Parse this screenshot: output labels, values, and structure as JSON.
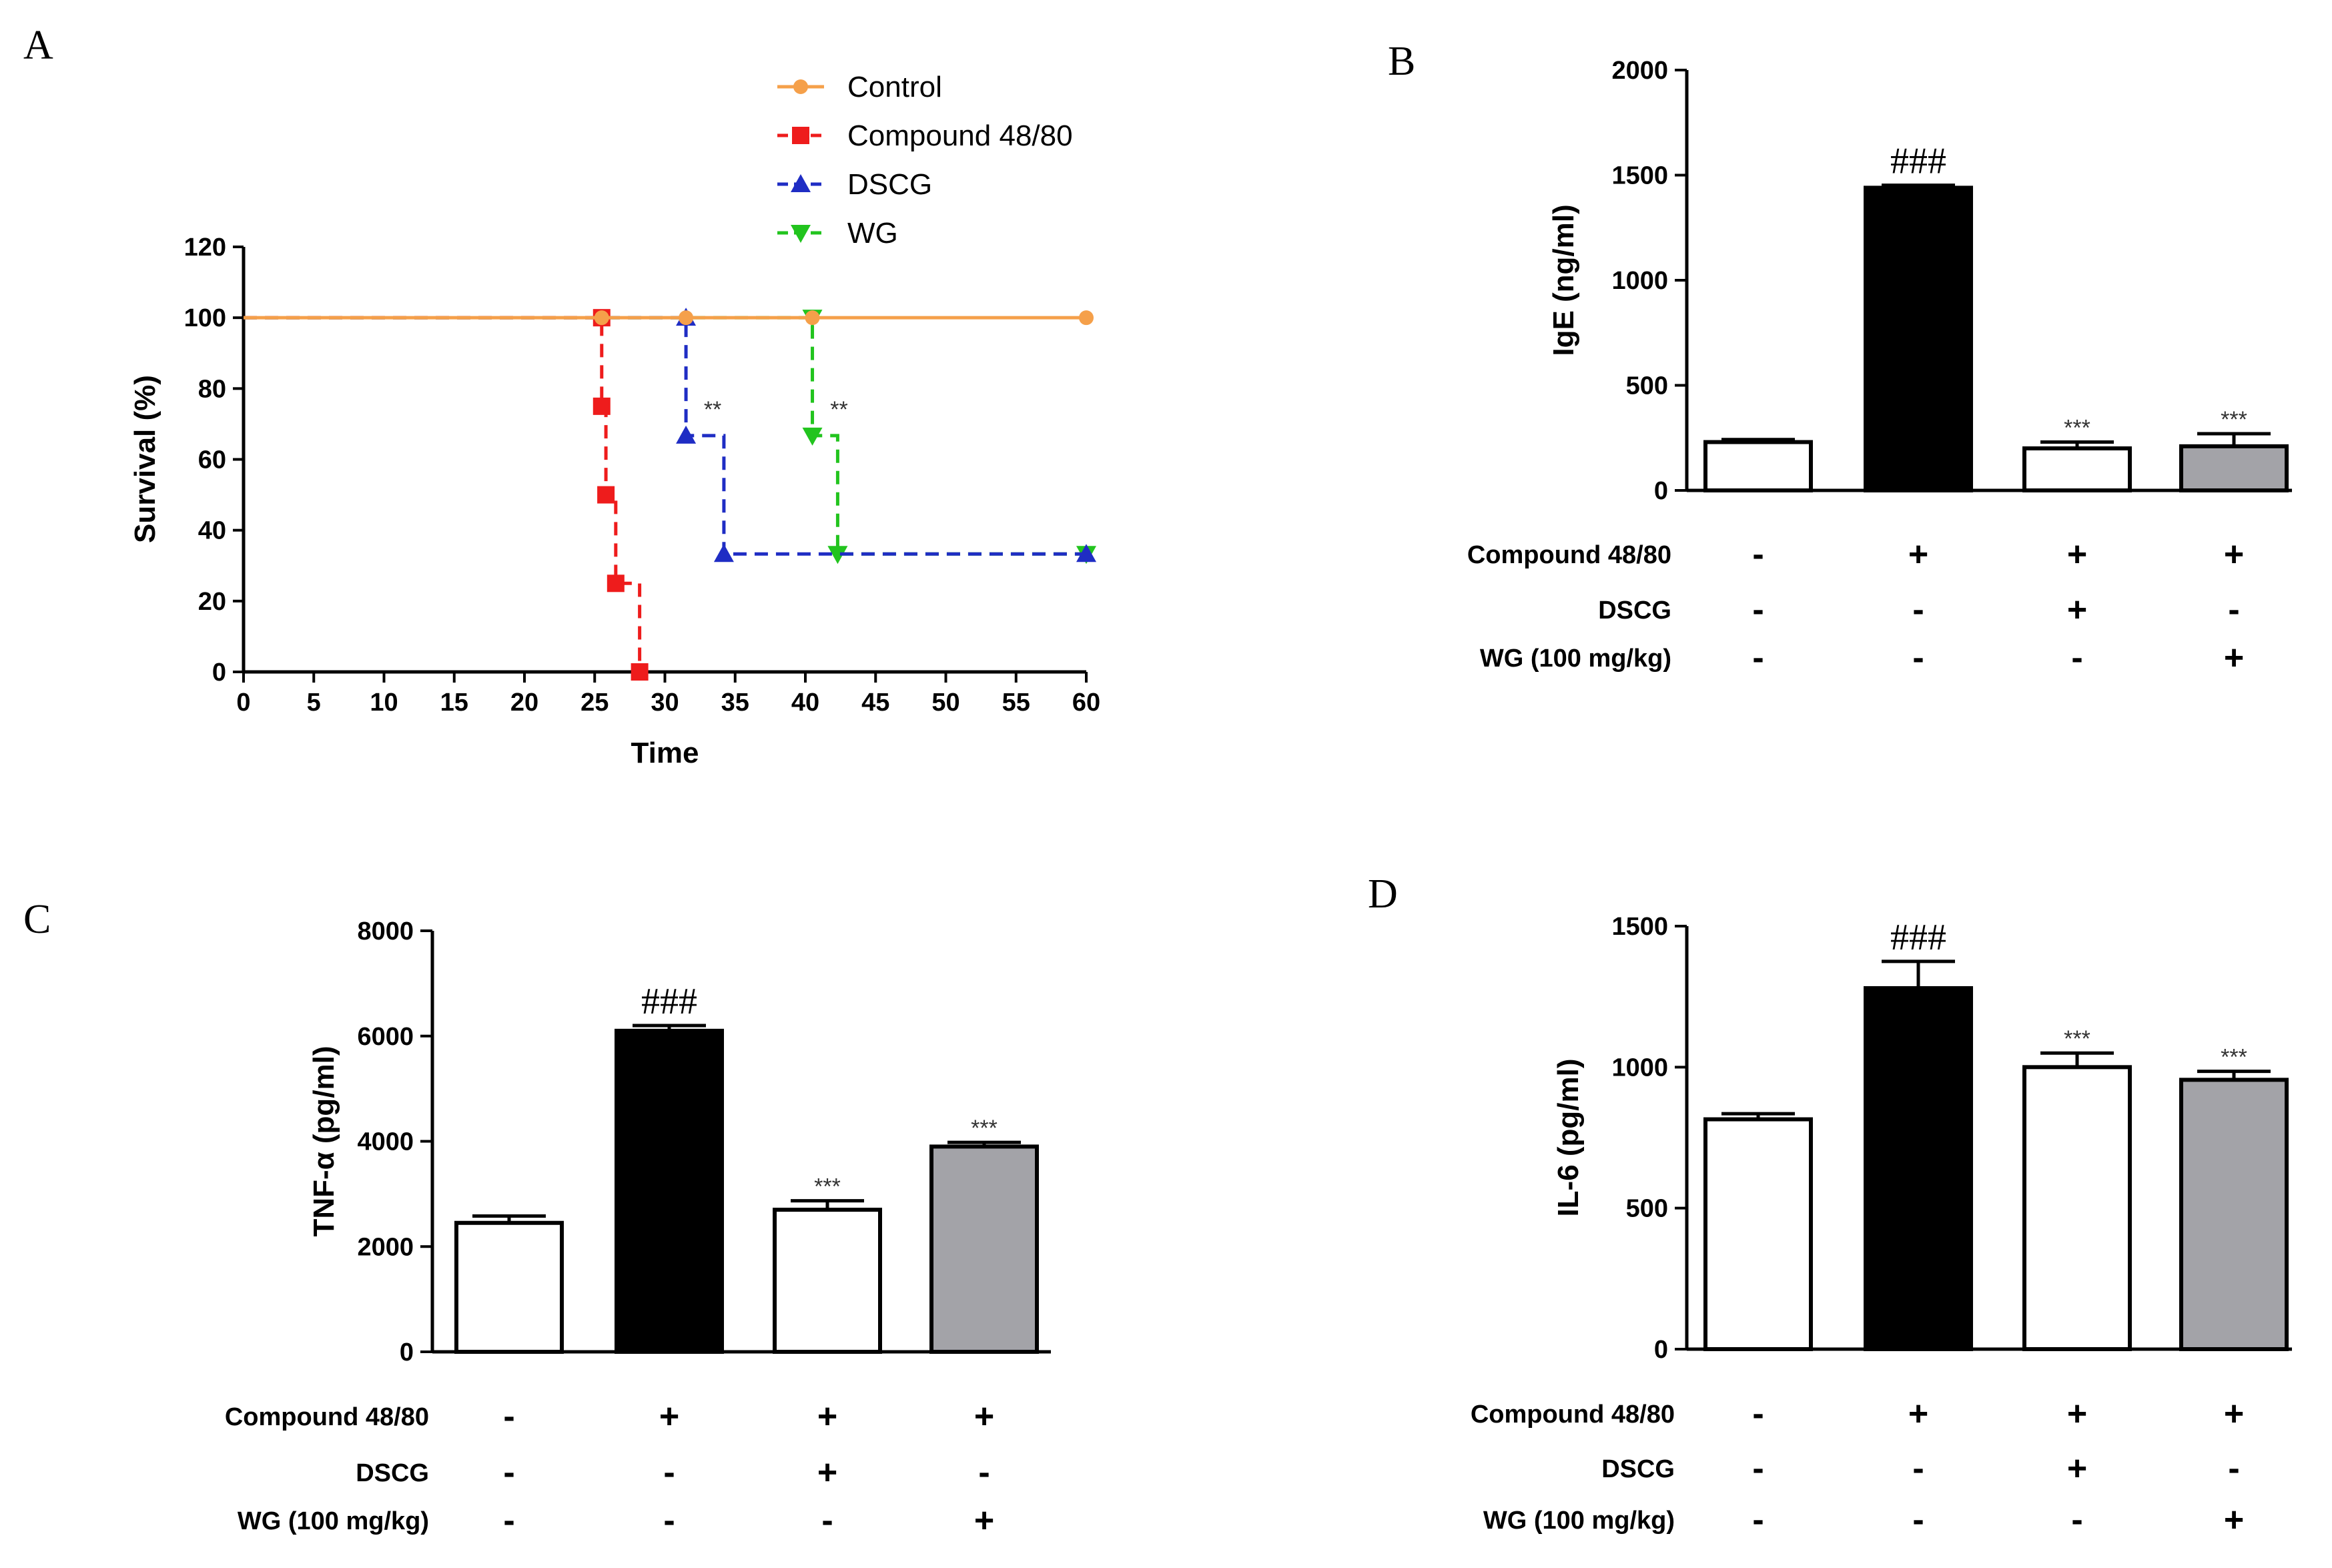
{
  "panels": {
    "a": "A",
    "b": "B",
    "c": "C",
    "d": "D"
  },
  "chart_data": [
    {
      "type": "line",
      "panel": "A",
      "title": "",
      "xlabel": "Time",
      "ylabel": "Survival (%)",
      "xlim": [
        0,
        60
      ],
      "ylim": [
        0,
        120
      ],
      "xticks": [
        "0",
        "5",
        "10",
        "15",
        "20",
        "25",
        "30",
        "35",
        "40",
        "45",
        "50",
        "55",
        "60"
      ],
      "yticks": [
        "0",
        "20",
        "40",
        "60",
        "80",
        "100",
        "120"
      ],
      "legend": [
        "Control",
        "Compound 48/80",
        "DSCG",
        "WG"
      ],
      "legend_position": "top",
      "series": [
        {
          "name": "Control",
          "color": "#F5A04A",
          "dash": "solid",
          "marker": "circle",
          "points": [
            [
              0,
              100
            ],
            [
              25.5,
              100
            ],
            [
              31.5,
              100
            ],
            [
              40.5,
              100
            ],
            [
              60,
              100
            ]
          ]
        },
        {
          "name": "Compound 48/80",
          "color": "#EE1C1C",
          "dash": "dashed",
          "marker": "square",
          "points": [
            [
              0,
              100
            ],
            [
              25.5,
              100
            ],
            [
              25.5,
              75
            ],
            [
              25.8,
              50
            ],
            [
              26.5,
              25
            ],
            [
              28.2,
              0
            ]
          ]
        },
        {
          "name": "DSCG",
          "color": "#1F2DC4",
          "dash": "dashed",
          "marker": "triangle-up",
          "points": [
            [
              0,
              100
            ],
            [
              31.5,
              100
            ],
            [
              31.5,
              66.7
            ],
            [
              34.2,
              33.3
            ],
            [
              60,
              33.3
            ]
          ]
        },
        {
          "name": "WG",
          "color": "#22C41E",
          "dash": "dashed",
          "marker": "triangle-down",
          "points": [
            [
              0,
              100
            ],
            [
              40.5,
              100
            ],
            [
              40.5,
              66.7
            ],
            [
              42.3,
              33.3
            ],
            [
              60,
              33.3
            ]
          ]
        }
      ],
      "annotations": [
        {
          "text": "**",
          "x": 33.4,
          "y": 72
        },
        {
          "text": "**",
          "x": 42.4,
          "y": 72
        }
      ]
    },
    {
      "type": "bar",
      "panel": "B",
      "ylabel": "IgE (ng/ml)",
      "ylim": [
        0,
        2000
      ],
      "yticks": [
        "0",
        "500",
        "1000",
        "1500",
        "2000"
      ],
      "values": [
        230,
        1440,
        200,
        210
      ],
      "errors": [
        12,
        12,
        30,
        60
      ],
      "colors": [
        "#FFFFFF",
        "#000000",
        "#FFFFFF",
        "#A3A3A8"
      ],
      "labels_above": [
        "",
        "###",
        "***",
        "***"
      ]
    },
    {
      "type": "bar",
      "panel": "C",
      "ylabel": "TNF-α (pg/ml)",
      "ylim": [
        0,
        8000
      ],
      "yticks": [
        "0",
        "2000",
        "4000",
        "6000",
        "8000"
      ],
      "values": [
        2450,
        6100,
        2700,
        3900
      ],
      "errors": [
        130,
        100,
        170,
        80
      ],
      "colors": [
        "#FFFFFF",
        "#000000",
        "#FFFFFF",
        "#A3A3A8"
      ],
      "labels_above": [
        "",
        "###",
        "***",
        "***"
      ]
    },
    {
      "type": "bar",
      "panel": "D",
      "ylabel": "IL-6 (pg/ml)",
      "ylim": [
        0,
        1500
      ],
      "yticks": [
        "0",
        "500",
        "1000",
        "1500"
      ],
      "values": [
        815,
        1280,
        1000,
        955
      ],
      "errors": [
        20,
        95,
        50,
        30
      ],
      "colors": [
        "#FFFFFF",
        "#000000",
        "#FFFFFF",
        "#A3A3A8"
      ],
      "labels_above": [
        "",
        "###",
        "***",
        "***"
      ]
    }
  ],
  "conditions": {
    "rows": [
      "Compound 48/80",
      "DSCG",
      "WG (100 mg/kg)"
    ],
    "signs": [
      [
        "-",
        "+",
        "+",
        "+"
      ],
      [
        "-",
        "-",
        "+",
        "-"
      ],
      [
        "-",
        "-",
        "-",
        "+"
      ]
    ]
  }
}
